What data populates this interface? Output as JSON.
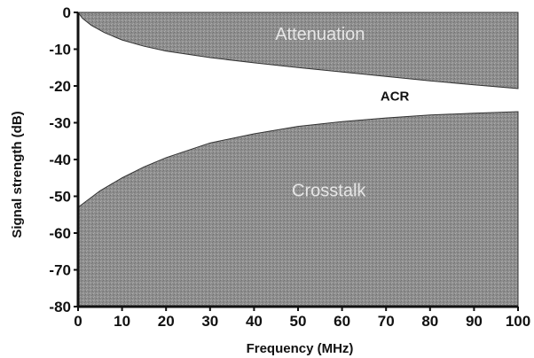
{
  "chart_data": {
    "type": "area",
    "title": "",
    "xlabel": "Frequency (MHz)",
    "ylabel": "Signal strength (dB)",
    "xlim": [
      0,
      100
    ],
    "ylim": [
      -80,
      0
    ],
    "x_ticks": [
      0,
      10,
      20,
      30,
      40,
      50,
      60,
      70,
      80,
      90,
      100
    ],
    "y_ticks": [
      0,
      -10,
      -20,
      -30,
      -40,
      -50,
      -60,
      -70,
      -80
    ],
    "grid": false,
    "series": [
      {
        "name": "Attenuation",
        "x": [
          0,
          1,
          3,
          6,
          10,
          15,
          20,
          30,
          40,
          50,
          60,
          70,
          80,
          90,
          100
        ],
        "values": [
          0,
          -1.6,
          -3.5,
          -5.5,
          -7.5,
          -9.2,
          -10.5,
          -12.3,
          -13.7,
          -15.0,
          -16.2,
          -17.4,
          -18.6,
          -19.7,
          -20.7
        ]
      },
      {
        "name": "Crosstalk",
        "x": [
          0,
          5,
          10,
          15,
          20,
          30,
          40,
          50,
          60,
          70,
          80,
          90,
          100
        ],
        "values": [
          -53,
          -48.5,
          -45,
          -42,
          -39.5,
          -35.5,
          -33,
          -31,
          -29.7,
          -28.7,
          -27.9,
          -27.4,
          -27.0
        ]
      }
    ],
    "annotations": [
      {
        "text": "ACR",
        "x": 72,
        "y": -24
      }
    ],
    "colors": {
      "fill": "#8e8e8e",
      "background": "#ffffff",
      "ink": "#111111"
    }
  }
}
